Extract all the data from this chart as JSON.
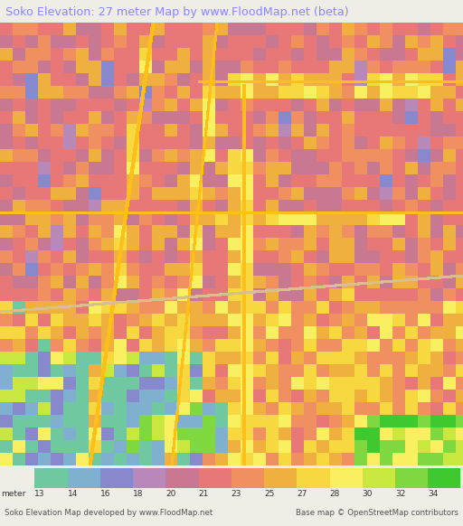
{
  "title": "Soko Elevation: 27 meter Map by www.FloodMap.net (beta)",
  "title_color": "#8888ff",
  "title_bg": "#f0ede8",
  "footer_left": "Soko Elevation Map developed by www.FloodMap.net",
  "footer_right": "Base map © OpenStreetMap contributors",
  "colorbar_labels": [
    "13",
    "14",
    "16",
    "18",
    "20",
    "21",
    "23",
    "25",
    "27",
    "28",
    "30",
    "32",
    "34"
  ],
  "colorbar_colors": [
    "#70c8a0",
    "#80b0d0",
    "#8888cc",
    "#b888b8",
    "#c87890",
    "#e87878",
    "#f09060",
    "#f0b040",
    "#f8d840",
    "#f8f060",
    "#c8e840",
    "#80d840",
    "#40c830"
  ],
  "map_bg": "#f0ece6",
  "block_size": 14
}
